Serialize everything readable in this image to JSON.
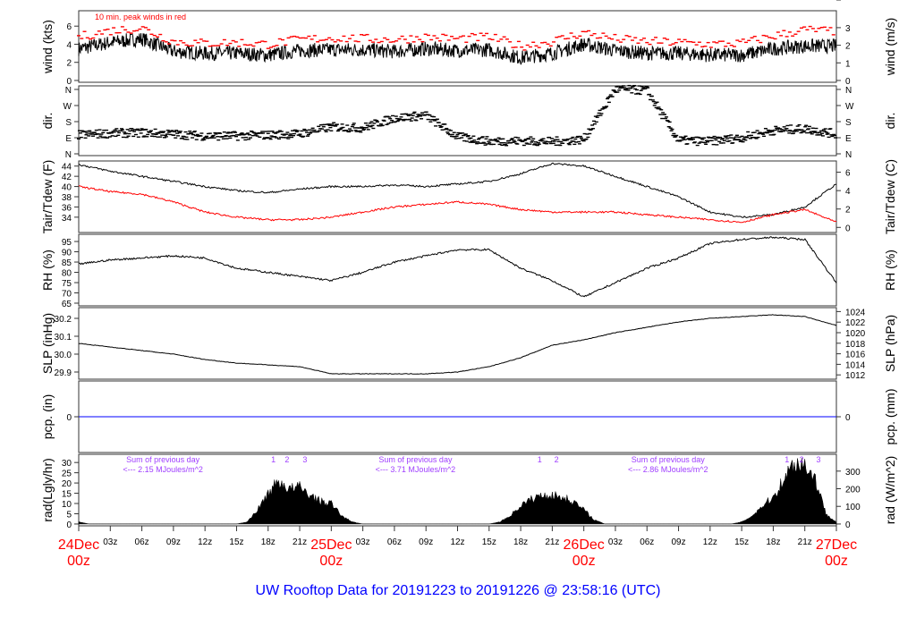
{
  "chart_data": {
    "type": "line",
    "title": "UW Rooftop Data for 20191223  to  20191226 @ 23:58:16  (UTC)",
    "x_unit": "hours since 24Dec 00z",
    "xlim": [
      0,
      72
    ],
    "x_ticks": [
      {
        "h": 0,
        "label": "24Dec",
        "sub": "00z",
        "major": true
      },
      {
        "h": 3,
        "label": "03z"
      },
      {
        "h": 6,
        "label": "06z"
      },
      {
        "h": 9,
        "label": "09z"
      },
      {
        "h": 12,
        "label": "12z"
      },
      {
        "h": 15,
        "label": "15z"
      },
      {
        "h": 18,
        "label": "18z"
      },
      {
        "h": 21,
        "label": "21z"
      },
      {
        "h": 24,
        "label": "25Dec",
        "sub": "00z",
        "major": true
      },
      {
        "h": 27,
        "label": "03z"
      },
      {
        "h": 30,
        "label": "06z"
      },
      {
        "h": 33,
        "label": "09z"
      },
      {
        "h": 36,
        "label": "12z"
      },
      {
        "h": 39,
        "label": "15z"
      },
      {
        "h": 42,
        "label": "18z"
      },
      {
        "h": 45,
        "label": "21z"
      },
      {
        "h": 48,
        "label": "26Dec",
        "sub": "00z",
        "major": true
      },
      {
        "h": 51,
        "label": "03z"
      },
      {
        "h": 54,
        "label": "06z"
      },
      {
        "h": 57,
        "label": "09z"
      },
      {
        "h": 60,
        "label": "12z"
      },
      {
        "h": 63,
        "label": "15z"
      },
      {
        "h": 66,
        "label": "18z"
      },
      {
        "h": 69,
        "label": "21z"
      },
      {
        "h": 72,
        "label": "27Dec",
        "sub": "00z",
        "major": true
      }
    ],
    "sample_hours_step": 3,
    "panels": [
      {
        "id": "wind",
        "ylabel": "wind (kts)",
        "ylabel_right": "wind (m/s)",
        "ylim": [
          -0.2,
          7.7
        ],
        "ticks": [
          0,
          2,
          4,
          6
        ],
        "right_ticks": [
          {
            "v": 0,
            "label": "0"
          },
          {
            "v": 1.944,
            "label": "1"
          },
          {
            "v": 3.888,
            "label": "2"
          },
          {
            "v": 5.832,
            "label": "3"
          }
        ],
        "annotation": "10 min. peak winds in red",
        "series": [
          {
            "name": "wind speed",
            "color": "#000000",
            "values": [
              3.5,
              4.2,
              4.6,
              3.2,
              3.0,
              3.0,
              2.8,
              3.3,
              3.4,
              3.4,
              3.2,
              3.5,
              3.3,
              3.4,
              2.5,
              3.0,
              4.0,
              3.3,
              3.0,
              3.0,
              2.8,
              2.8,
              3.5,
              3.8,
              3.8
            ]
          },
          {
            "name": "10 min peak",
            "color": "#ff0000",
            "style": "dash",
            "values": [
              4.8,
              5.5,
              5.8,
              4.3,
              4.1,
              4.2,
              4.0,
              4.5,
              4.7,
              4.6,
              4.5,
              4.8,
              4.6,
              4.8,
              3.8,
              4.3,
              5.3,
              4.6,
              4.3,
              4.2,
              4.0,
              4.1,
              4.9,
              5.6,
              5.4
            ]
          }
        ]
      },
      {
        "id": "dir",
        "ylabel": "dir.",
        "ylabel_right": "dir.",
        "ylim": [
          -10,
          380
        ],
        "ticks": [
          {
            "v": 0,
            "label": "N"
          },
          {
            "v": 90,
            "label": "E"
          },
          {
            "v": 180,
            "label": "S"
          },
          {
            "v": 270,
            "label": "W"
          },
          {
            "v": 360,
            "label": "N"
          }
        ],
        "series": [
          {
            "name": "wind direction",
            "color": "#000000",
            "style": "points",
            "values": [
              105,
              115,
              118,
              110,
              100,
              100,
              105,
              112,
              150,
              145,
              200,
              215,
              95,
              70,
              72,
              68,
              80,
              360,
              355,
              75,
              70,
              90,
              130,
              140,
              110
            ]
          }
        ]
      },
      {
        "id": "temp",
        "ylabel": "Tair/Tdew (F)",
        "ylabel_right": "Tair/Tdew (C)",
        "ylim": [
          31,
          45
        ],
        "ticks": [
          34,
          36,
          38,
          40,
          42,
          44
        ],
        "right_ticks": [
          {
            "v": 32,
            "label": "0"
          },
          {
            "v": 35.6,
            "label": "2"
          },
          {
            "v": 39.2,
            "label": "4"
          },
          {
            "v": 42.8,
            "label": "6"
          }
        ],
        "series": [
          {
            "name": "Tair",
            "color": "#000000",
            "values": [
              44.3,
              43.0,
              42.0,
              41.0,
              40.0,
              39.2,
              38.8,
              39.5,
              40.0,
              40.0,
              40.3,
              40.0,
              40.5,
              41.0,
              42.5,
              44.5,
              44.0,
              42.0,
              40.0,
              38.0,
              35.0,
              34.0,
              34.5,
              36.0,
              40.5
            ]
          },
          {
            "name": "Tdew",
            "color": "#ff0000",
            "values": [
              40.0,
              39.0,
              38.5,
              37.0,
              35.0,
              34.0,
              33.5,
              33.5,
              34.0,
              35.0,
              36.0,
              36.5,
              37.0,
              36.5,
              35.5,
              35.0,
              35.0,
              35.0,
              34.5,
              34.0,
              33.5,
              33.0,
              34.5,
              35.5,
              33.0
            ]
          }
        ]
      },
      {
        "id": "rh",
        "ylabel": "RH (%)",
        "ylabel_right": "RH (%)",
        "ylim": [
          63.7,
          98.5
        ],
        "ticks": [
          65,
          70,
          75,
          80,
          85,
          90,
          95
        ],
        "series": [
          {
            "name": "RH",
            "color": "#000000",
            "values": [
              84,
              86,
              87,
              88,
              87,
              82,
              80,
              78,
              76,
              80,
              85,
              88,
              91,
              91,
              82,
              76,
              68,
              75,
              82,
              87,
              94,
              96,
              97,
              96,
              75
            ]
          }
        ]
      },
      {
        "id": "slp",
        "ylabel": "SLP (inHg)",
        "ylabel_right": "SLP (hPa)",
        "ylim": [
          29.86,
          30.26
        ],
        "ticks": [
          {
            "v": 29.9,
            "label": "29.9"
          },
          {
            "v": 30.0,
            "label": "30.0"
          },
          {
            "v": 30.1,
            "label": "30.1"
          },
          {
            "v": 30.2,
            "label": "30.2"
          }
        ],
        "right_ticks": [
          {
            "v": 29.884,
            "label": "1012"
          },
          {
            "v": 29.943,
            "label": "1014"
          },
          {
            "v": 30.002,
            "label": "1016"
          },
          {
            "v": 30.061,
            "label": "1018"
          },
          {
            "v": 30.12,
            "label": "1020"
          },
          {
            "v": 30.179,
            "label": "1022"
          },
          {
            "v": 30.238,
            "label": "1024"
          }
        ],
        "series": [
          {
            "name": "SLP",
            "color": "#000000",
            "values": [
              30.06,
              30.04,
              30.02,
              30.0,
              29.97,
              29.95,
              29.94,
              29.93,
              29.89,
              29.89,
              29.89,
              29.89,
              29.9,
              29.93,
              29.98,
              30.05,
              30.08,
              30.12,
              30.15,
              30.18,
              30.2,
              30.21,
              30.22,
              30.21,
              30.16
            ]
          }
        ]
      },
      {
        "id": "pcp",
        "ylabel": "pcp. (in)",
        "ylabel_right": "pcp. (mm)",
        "ylim": [
          -1,
          1
        ],
        "ticks": [
          0
        ],
        "right_ticks": [
          {
            "v": 0,
            "label": "0"
          }
        ],
        "series": [
          {
            "name": "precipitation",
            "color": "#0000ff",
            "values": [
              0,
              0,
              0,
              0,
              0,
              0,
              0,
              0,
              0,
              0,
              0,
              0,
              0,
              0,
              0,
              0,
              0,
              0,
              0,
              0,
              0,
              0,
              0,
              0,
              0
            ]
          }
        ]
      },
      {
        "id": "rad",
        "ylabel": "rad(Lgly/hr)",
        "ylabel_right": "rad (W/m^2)",
        "ylim": [
          -0.9,
          34
        ],
        "ticks": [
          0,
          5,
          10,
          15,
          20,
          25,
          30
        ],
        "right_ticks": [
          {
            "v": 0,
            "label": "0"
          },
          {
            "v": 8.6,
            "label": "100"
          },
          {
            "v": 17.2,
            "label": "200"
          },
          {
            "v": 25.8,
            "label": "300"
          }
        ],
        "series": [
          {
            "name": "solar radiation",
            "color": "#000000",
            "style": "area",
            "step_hours": 1,
            "values": [
              1,
              0,
              0,
              0,
              0,
              0,
              0,
              0,
              0,
              0,
              0,
              0,
              0,
              0,
              0,
              0,
              1,
              7,
              15,
              21,
              17,
              18,
              14,
              11,
              10,
              4,
              1,
              0,
              0,
              0,
              0,
              0,
              0,
              0,
              0,
              0,
              0,
              0,
              0,
              0,
              1,
              4,
              9,
              12,
              14,
              14,
              13,
              11,
              7,
              2,
              0,
              0,
              0,
              0,
              0,
              0,
              0,
              0,
              0,
              0,
              0,
              0,
              0,
              1,
              4,
              9,
              13,
              22,
              30,
              29,
              22,
              5,
              1
            ]
          }
        ],
        "annotations": [
          {
            "h": 8,
            "line1": "Sum of previous day",
            "line2": "<--- 2.15 MJoules/m^2"
          },
          {
            "h": 32,
            "line1": "Sum of previous day",
            "line2": "<--- 3.71 MJoules/m^2"
          },
          {
            "h": 56,
            "line1": "Sum of previous day",
            "line2": "<--- 2.86 MJoules/m^2"
          }
        ],
        "markers": [
          {
            "h": 18.5,
            "label": "1"
          },
          {
            "h": 19.8,
            "label": "2"
          },
          {
            "h": 21.5,
            "label": "3"
          },
          {
            "h": 43.8,
            "label": "1"
          },
          {
            "h": 45.4,
            "label": "2"
          },
          {
            "h": 67.3,
            "label": "1"
          },
          {
            "h": 68.7,
            "label": "2"
          },
          {
            "h": 70.3,
            "label": "3"
          }
        ]
      }
    ]
  }
}
